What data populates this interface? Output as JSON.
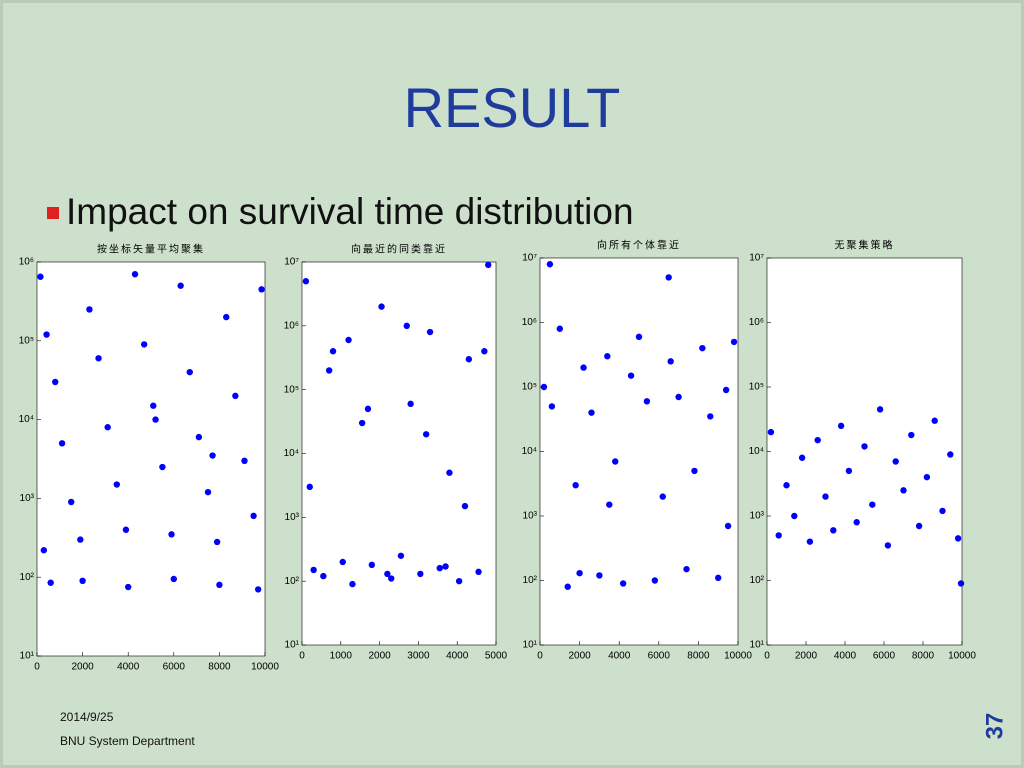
{
  "title": "RESULT",
  "bullet": "Impact on survival time distribution",
  "footer": {
    "date": "2014/9/25",
    "department": "BNU System Department",
    "page": "37"
  },
  "chart_data": [
    {
      "type": "scatter",
      "title": "按坐标矢量平均聚集",
      "color": "#0000ff",
      "yscale": "log",
      "x": [
        150,
        420,
        800,
        1100,
        1500,
        1900,
        2300,
        2700,
        3100,
        3500,
        3900,
        4300,
        4700,
        5100,
        5500,
        5900,
        6300,
        6700,
        7100,
        7500,
        7900,
        8300,
        8700,
        9100,
        9500,
        9850,
        600,
        2000,
        4000,
        6000,
        8000,
        9700,
        300,
        5200,
        7700
      ],
      "y": [
        650000,
        120000,
        30000,
        5000,
        900,
        300,
        250000,
        60000,
        8000,
        1500,
        400,
        700000,
        90000,
        15000,
        2500,
        350,
        500000,
        40000,
        6000,
        1200,
        280,
        200000,
        20000,
        3000,
        600,
        450000,
        85,
        90,
        75,
        95,
        80,
        70,
        220,
        10000,
        3500
      ],
      "xlim": [
        0,
        10000
      ],
      "xticks": [
        0,
        2000,
        4000,
        6000,
        8000,
        10000
      ],
      "ylim": [
        10,
        1000000
      ],
      "yticks": [
        {
          "value": 10,
          "label": "10¹"
        },
        {
          "value": 100,
          "label": "10²"
        },
        {
          "value": 1000,
          "label": "10³"
        },
        {
          "value": 10000,
          "label": "10⁴"
        },
        {
          "value": 100000,
          "label": "10⁵"
        },
        {
          "value": 1000000,
          "label": "10⁶"
        }
      ]
    },
    {
      "type": "scatter",
      "title": "向最近的同类靠近",
      "color": "#0000ff",
      "yscale": "log",
      "x": [
        100,
        300,
        550,
        800,
        1050,
        1300,
        1550,
        1800,
        2050,
        2300,
        2550,
        2800,
        3050,
        3300,
        3550,
        3800,
        4050,
        4300,
        4550,
        4800,
        200,
        700,
        1200,
        1700,
        2200,
        2700,
        3200,
        3700,
        4200,
        4700
      ],
      "y": [
        5000000,
        150,
        120,
        400000,
        200,
        90,
        30000,
        180,
        2000000,
        110,
        250,
        60000,
        130,
        800000,
        160,
        5000,
        100,
        300000,
        140,
        9000000,
        3000,
        200000,
        600000,
        50000,
        130,
        1000000,
        20000,
        170,
        1500,
        400000
      ],
      "xlim": [
        0,
        5000
      ],
      "xticks": [
        0,
        1000,
        2000,
        3000,
        4000,
        5000
      ],
      "ylim": [
        10,
        10000000
      ],
      "yticks": [
        {
          "value": 10,
          "label": "10¹"
        },
        {
          "value": 100,
          "label": "10²"
        },
        {
          "value": 1000,
          "label": "10³"
        },
        {
          "value": 10000,
          "label": "10⁴"
        },
        {
          "value": 100000,
          "label": "10⁵"
        },
        {
          "value": 1000000,
          "label": "10⁶"
        },
        {
          "value": 10000000,
          "label": "10⁷"
        }
      ]
    },
    {
      "type": "scatter",
      "title": "向所有个体靠近",
      "color": "#0000ff",
      "yscale": "log",
      "x": [
        200,
        600,
        1000,
        1400,
        1800,
        2200,
        2600,
        3000,
        3400,
        3800,
        4200,
        4600,
        5000,
        5400,
        5800,
        6200,
        6600,
        7000,
        7400,
        7800,
        8200,
        8600,
        9000,
        9400,
        9800,
        500,
        3500,
        6500,
        9500,
        2000
      ],
      "y": [
        100000,
        50000,
        800000,
        80,
        3000,
        200000,
        40000,
        120,
        300000,
        7000,
        90,
        150000,
        600000,
        60000,
        100,
        2000,
        250000,
        70000,
        150,
        5000,
        400000,
        35000,
        110,
        90000,
        500000,
        8000000,
        1500,
        5000000,
        700,
        130
      ],
      "xlim": [
        0,
        10000
      ],
      "xticks": [
        0,
        2000,
        4000,
        6000,
        8000,
        10000
      ],
      "ylim": [
        10,
        10000000
      ],
      "yticks": [
        {
          "value": 10,
          "label": "10¹"
        },
        {
          "value": 100,
          "label": "10²"
        },
        {
          "value": 1000,
          "label": "10³"
        },
        {
          "value": 10000,
          "label": "10⁴"
        },
        {
          "value": 100000,
          "label": "10⁵"
        },
        {
          "value": 1000000,
          "label": "10⁶"
        },
        {
          "value": 10000000,
          "label": "10⁷"
        }
      ]
    },
    {
      "type": "scatter",
      "title": "无聚集策略",
      "color": "#0000ff",
      "yscale": "log",
      "x": [
        200,
        600,
        1000,
        1400,
        1800,
        2200,
        2600,
        3000,
        3400,
        3800,
        4200,
        4600,
        5000,
        5400,
        5800,
        6200,
        6600,
        7000,
        7400,
        7800,
        8200,
        8600,
        9000,
        9400,
        9800,
        9950
      ],
      "y": [
        20000,
        500,
        3000,
        1000,
        8000,
        400,
        15000,
        2000,
        600,
        25000,
        5000,
        800,
        12000,
        1500,
        45000,
        350,
        7000,
        2500,
        18000,
        700,
        4000,
        30000,
        1200,
        9000,
        450,
        90
      ],
      "xlim": [
        0,
        10000
      ],
      "xticks": [
        0,
        2000,
        4000,
        6000,
        8000,
        10000
      ],
      "ylim": [
        10,
        10000000
      ],
      "yticks": [
        {
          "value": 10,
          "label": "10¹"
        },
        {
          "value": 100,
          "label": "10²"
        },
        {
          "value": 1000,
          "label": "10³"
        },
        {
          "value": 10000,
          "label": "10⁴"
        },
        {
          "value": 100000,
          "label": "10⁵"
        },
        {
          "value": 1000000,
          "label": "10⁶"
        },
        {
          "value": 10000000,
          "label": "10⁷"
        }
      ]
    }
  ]
}
